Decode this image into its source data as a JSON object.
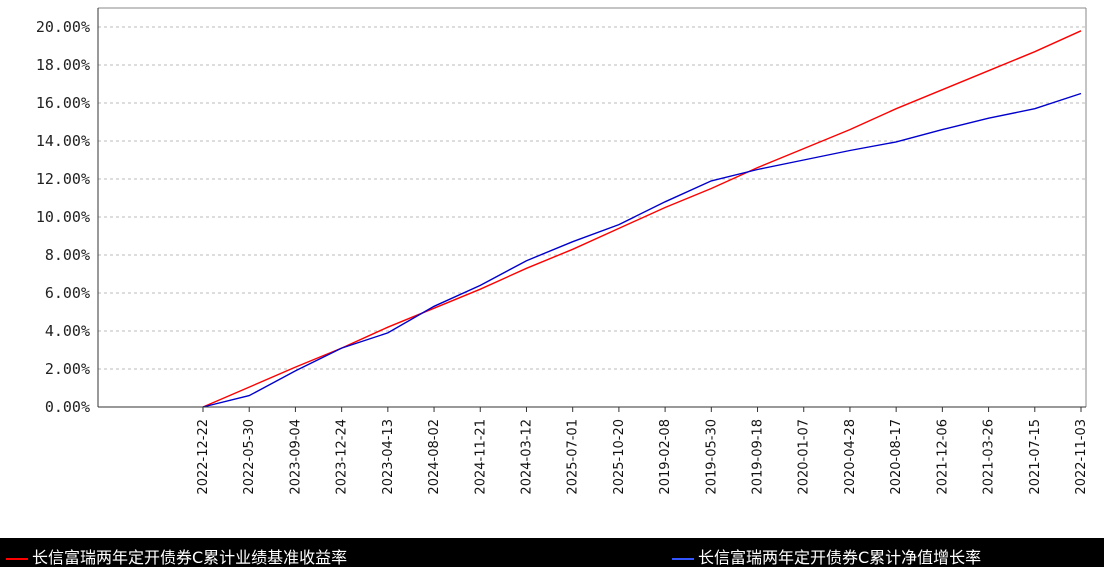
{
  "chart_data": {
    "type": "line",
    "title": "",
    "xlabel": "",
    "ylabel": "",
    "y_format": "percent",
    "ylim": [
      0,
      21
    ],
    "grid": true,
    "legend_position": "bottom",
    "x_tick_labels": [
      "2022-12-22",
      "2022-05-30",
      "2023-09-04",
      "2023-12-24",
      "2023-04-13",
      "2024-08-02",
      "2024-11-21",
      "2024-03-12",
      "2025-07-01",
      "2025-10-20",
      "2019-02-08",
      "2019-05-30",
      "2019-09-18",
      "2020-01-07",
      "2020-04-28",
      "2020-08-17",
      "2021-12-06",
      "2021-03-26",
      "2021-07-15",
      "2022-11-03"
    ],
    "y_tick_labels": [
      "0.00%",
      "2.00%",
      "4.00%",
      "6.00%",
      "8.00%",
      "10.00%",
      "12.00%",
      "14.00%",
      "16.00%",
      "18.00%",
      "20.00%"
    ],
    "series": [
      {
        "name": "长信富瑞两年定开债券C累计业绩基准收益率",
        "color": "#ff0000",
        "points": [
          [
            0,
            0
          ],
          [
            1,
            1.05
          ],
          [
            2,
            2.1
          ],
          [
            3,
            3.1
          ],
          [
            4,
            4.2
          ],
          [
            5,
            5.2
          ],
          [
            6,
            6.2
          ],
          [
            7,
            7.3
          ],
          [
            8,
            8.3
          ],
          [
            9,
            9.4
          ],
          [
            10,
            10.5
          ],
          [
            11,
            11.5
          ],
          [
            12,
            12.6
          ],
          [
            13,
            13.6
          ],
          [
            14,
            14.6
          ],
          [
            15,
            15.7
          ],
          [
            16,
            16.7
          ],
          [
            17,
            17.7
          ],
          [
            18,
            18.7
          ],
          [
            19,
            19.8
          ]
        ]
      },
      {
        "name": "长信富瑞两年定开债券C累计净值增长率",
        "color": "#0000cc",
        "points": [
          [
            0,
            0
          ],
          [
            1,
            0.6
          ],
          [
            2,
            1.9
          ],
          [
            3,
            3.1
          ],
          [
            4,
            3.9
          ],
          [
            5,
            5.3
          ],
          [
            6,
            6.4
          ],
          [
            7,
            7.7
          ],
          [
            8,
            8.7
          ],
          [
            9,
            9.6
          ],
          [
            10,
            10.8
          ],
          [
            11,
            11.9
          ],
          [
            12,
            12.5
          ],
          [
            13,
            13
          ],
          [
            14,
            13.5
          ],
          [
            15,
            13.95
          ],
          [
            16,
            14.6
          ],
          [
            17,
            15.2
          ],
          [
            18,
            15.7
          ],
          [
            19,
            16.5
          ]
        ]
      }
    ]
  }
}
